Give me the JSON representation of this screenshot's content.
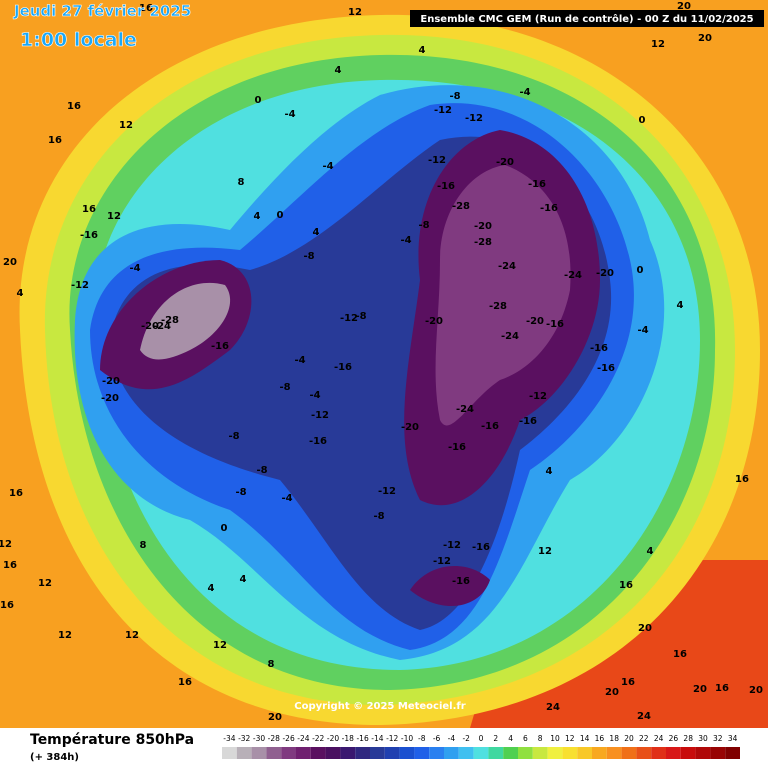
{
  "header": {
    "date": "Jeudi 27 février 2025",
    "time": "1:00 locale",
    "model": "Ensemble CMC GEM  (Run de contrôle)  -  00 Z du 11/02/2025",
    "copyright": "Copyright © 2025 Meteociel.fr"
  },
  "legend": {
    "title": "Température 850hPa",
    "lead": "(+ 384h)",
    "ticks": [
      -34,
      -32,
      -30,
      -28,
      -26,
      -24,
      -22,
      -20,
      -18,
      -16,
      -14,
      -12,
      -10,
      -8,
      -6,
      -4,
      -2,
      0,
      2,
      4,
      6,
      8,
      10,
      12,
      14,
      16,
      18,
      20,
      22,
      24,
      26,
      28,
      30,
      32,
      34
    ],
    "colors": [
      "#d8d8d8",
      "#b8b0b8",
      "#a890a8",
      "#906090",
      "#803a80",
      "#702070",
      "#5a1060",
      "#4a1060",
      "#3a1870",
      "#302880",
      "#283a98",
      "#2040b0",
      "#1a50d0",
      "#2060e8",
      "#2a80f0",
      "#30a0f0",
      "#40c0f0",
      "#50e0e0",
      "#40d8a0",
      "#50d050",
      "#90e040",
      "#c8e840",
      "#f0f040",
      "#f8e030",
      "#f8c828",
      "#f8a820",
      "#f89020",
      "#f07018",
      "#e85018",
      "#e03018",
      "#d81818",
      "#c80c0c",
      "#b00808",
      "#980404",
      "#800000"
    ]
  },
  "map_labels": [
    "12",
    "16",
    "20",
    "12",
    "20",
    "4",
    "4",
    "0",
    "-8",
    "-4",
    "-12",
    "-12",
    "0",
    "-4",
    "16",
    "12",
    "16",
    "-20",
    "-12",
    "-16",
    "-16",
    "-16",
    "8",
    "-4",
    "-28",
    "-20",
    "-28",
    "-24",
    "-24",
    "-20",
    "-4",
    "-8",
    "4",
    "4",
    "0",
    "-8",
    "16",
    "12",
    "-16",
    "20",
    "-12",
    "-4",
    "4",
    "-20",
    "-28",
    "-20",
    "-16",
    "-24",
    "-16",
    "-16",
    "-12",
    "-16",
    "-8",
    "-16",
    "-20",
    "-24",
    "-28",
    "-20",
    "-20",
    "-4",
    "-8",
    "-4",
    "-12",
    "-16",
    "-8",
    "-24",
    "-16",
    "-20",
    "-12",
    "-16",
    "-16",
    "-12",
    "-8",
    "-8",
    "-8",
    "-4",
    "0",
    "4",
    "4",
    "-12",
    "-16",
    "-12",
    "-16",
    "12",
    "4",
    "4",
    "16",
    "16",
    "20",
    "16",
    "20",
    "16",
    "24",
    "24",
    "20",
    "16",
    "20",
    "16",
    "20",
    "8",
    "12",
    "12",
    "12",
    "16",
    "12",
    "16",
    "12",
    "8",
    "16",
    "4",
    "-4",
    "0"
  ]
}
